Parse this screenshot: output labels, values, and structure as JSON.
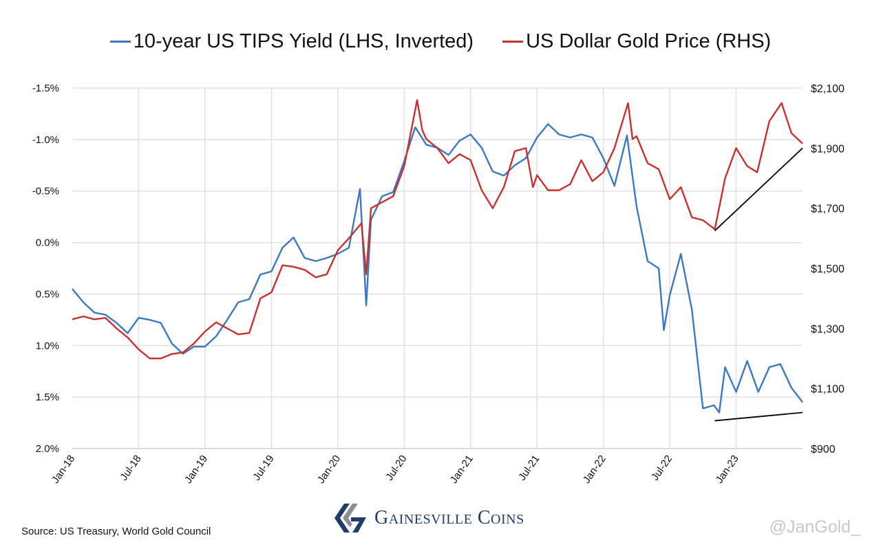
{
  "chart_data": {
    "type": "line",
    "title": "",
    "legend_position": "top",
    "grid": true,
    "x_tick_labels": [
      "Jan-18",
      "Jul-18",
      "Jan-19",
      "Jul-19",
      "Jan-20",
      "Jul-20",
      "Jan-21",
      "Jul-21",
      "Jan-22",
      "Jul-22",
      "Jan-23"
    ],
    "x_range": [
      "2018-01-01",
      "2023-07-01"
    ],
    "y_left": {
      "label": "",
      "inverted": true,
      "range": [
        -1.5,
        2.0
      ],
      "ticks": [
        "-1.5%",
        "-1.0%",
        "-0.5%",
        "0.0%",
        "0.5%",
        "1.0%",
        "1.5%",
        "2.0%"
      ],
      "tick_values": [
        -1.5,
        -1.0,
        -0.5,
        0.0,
        0.5,
        1.0,
        1.5,
        2.0
      ]
    },
    "y_right": {
      "label": "",
      "range": [
        900,
        2100
      ],
      "ticks": [
        "$2,100",
        "$1,900",
        "$1,700",
        "$1,500",
        "$1,300",
        "$1,100",
        "$900"
      ],
      "tick_values": [
        2100,
        1900,
        1700,
        1500,
        1300,
        1100,
        900
      ]
    },
    "series": [
      {
        "name": "10-year US TIPS Yield (LHS, Inverted)",
        "axis": "left",
        "color": "#3a78c3",
        "x": [
          "2018-01-01",
          "2018-02-01",
          "2018-03-01",
          "2018-04-01",
          "2018-05-01",
          "2018-06-01",
          "2018-07-01",
          "2018-08-01",
          "2018-09-01",
          "2018-10-01",
          "2018-11-01",
          "2018-12-01",
          "2019-01-01",
          "2019-02-01",
          "2019-03-01",
          "2019-04-01",
          "2019-05-01",
          "2019-06-01",
          "2019-07-01",
          "2019-08-01",
          "2019-09-01",
          "2019-10-01",
          "2019-11-01",
          "2019-12-01",
          "2020-01-01",
          "2020-02-01",
          "2020-03-01",
          "2020-03-18",
          "2020-04-01",
          "2020-05-01",
          "2020-06-01",
          "2020-07-01",
          "2020-08-01",
          "2020-09-01",
          "2020-10-01",
          "2020-11-01",
          "2020-12-01",
          "2021-01-01",
          "2021-02-01",
          "2021-03-01",
          "2021-04-01",
          "2021-05-01",
          "2021-06-01",
          "2021-07-01",
          "2021-08-01",
          "2021-09-01",
          "2021-10-01",
          "2021-11-01",
          "2021-12-01",
          "2022-01-01",
          "2022-02-01",
          "2022-03-05",
          "2022-04-01",
          "2022-05-01",
          "2022-06-01",
          "2022-06-15",
          "2022-07-01",
          "2022-08-01",
          "2022-09-01",
          "2022-10-01",
          "2022-11-01",
          "2022-11-15",
          "2022-12-01",
          "2023-01-01",
          "2023-02-01",
          "2023-03-01",
          "2023-04-01",
          "2023-05-01",
          "2023-06-01",
          "2023-07-01"
        ],
        "y": [
          0.45,
          0.58,
          0.68,
          0.7,
          0.78,
          0.88,
          0.73,
          0.75,
          0.78,
          0.98,
          1.08,
          1.01,
          1.01,
          0.91,
          0.75,
          0.58,
          0.55,
          0.31,
          0.28,
          0.05,
          -0.05,
          0.15,
          0.18,
          0.15,
          0.11,
          0.05,
          -0.52,
          0.61,
          -0.22,
          -0.45,
          -0.49,
          -0.79,
          -1.12,
          -0.95,
          -0.92,
          -0.85,
          -0.99,
          -1.05,
          -0.92,
          -0.69,
          -0.65,
          -0.75,
          -0.82,
          -1.02,
          -1.15,
          -1.05,
          -1.02,
          -1.05,
          -1.02,
          -0.82,
          -0.55,
          -1.04,
          -0.35,
          0.18,
          0.25,
          0.85,
          0.51,
          0.11,
          0.65,
          1.61,
          1.58,
          1.65,
          1.21,
          1.45,
          1.15,
          1.45,
          1.21,
          1.18,
          1.41,
          1.55
        ]
      },
      {
        "name": "US Dollar Gold Price (RHS)",
        "axis": "right",
        "color": "#c8302c",
        "x": [
          "2018-01-01",
          "2018-02-01",
          "2018-03-01",
          "2018-04-01",
          "2018-05-01",
          "2018-06-01",
          "2018-07-01",
          "2018-08-01",
          "2018-09-01",
          "2018-10-01",
          "2018-11-01",
          "2018-12-01",
          "2019-01-01",
          "2019-02-01",
          "2019-03-01",
          "2019-04-01",
          "2019-05-01",
          "2019-06-01",
          "2019-07-01",
          "2019-08-01",
          "2019-09-01",
          "2019-10-01",
          "2019-11-01",
          "2019-12-01",
          "2020-01-01",
          "2020-02-01",
          "2020-03-05",
          "2020-03-18",
          "2020-04-01",
          "2020-05-01",
          "2020-06-01",
          "2020-07-01",
          "2020-08-06",
          "2020-08-20",
          "2020-09-01",
          "2020-10-01",
          "2020-11-01",
          "2020-12-01",
          "2021-01-01",
          "2021-02-01",
          "2021-03-01",
          "2021-04-01",
          "2021-05-01",
          "2021-06-01",
          "2021-06-20",
          "2021-07-01",
          "2021-08-01",
          "2021-09-01",
          "2021-10-01",
          "2021-11-01",
          "2021-12-01",
          "2022-01-01",
          "2022-02-01",
          "2022-03-08",
          "2022-03-20",
          "2022-04-01",
          "2022-05-01",
          "2022-06-01",
          "2022-07-01",
          "2022-08-01",
          "2022-09-01",
          "2022-10-01",
          "2022-11-03",
          "2022-12-01",
          "2023-01-01",
          "2023-02-01",
          "2023-02-28",
          "2023-04-01",
          "2023-05-04",
          "2023-06-01",
          "2023-07-01"
        ],
        "y": [
          1330,
          1340,
          1330,
          1335,
          1300,
          1270,
          1230,
          1200,
          1200,
          1215,
          1220,
          1250,
          1290,
          1320,
          1300,
          1280,
          1285,
          1400,
          1420,
          1510,
          1505,
          1495,
          1470,
          1480,
          1560,
          1600,
          1650,
          1480,
          1700,
          1720,
          1740,
          1840,
          2060,
          1960,
          1930,
          1900,
          1850,
          1880,
          1860,
          1760,
          1700,
          1770,
          1890,
          1900,
          1770,
          1810,
          1760,
          1760,
          1780,
          1860,
          1790,
          1820,
          1900,
          2050,
          1930,
          1940,
          1850,
          1830,
          1730,
          1770,
          1670,
          1660,
          1630,
          1800,
          1900,
          1840,
          1820,
          1990,
          2050,
          1950,
          1915
        ]
      }
    ],
    "annotations": [
      {
        "type": "trendline",
        "axis": "right",
        "x": [
          "2022-11-03",
          "2023-07-01"
        ],
        "y": [
          1625,
          1900
        ],
        "color": "#000000"
      },
      {
        "type": "trendline",
        "axis": "left",
        "x": [
          "2022-11-03",
          "2023-07-01"
        ],
        "y": [
          1.73,
          1.65
        ],
        "color": "#000000"
      }
    ]
  },
  "legend": {
    "items": [
      {
        "label": "10-year US TIPS Yield (LHS, Inverted)",
        "color": "#3a78c3"
      },
      {
        "label": "US Dollar Gold Price (RHS)",
        "color": "#c8302c"
      }
    ]
  },
  "footer": {
    "source": "Source: US Treasury, World Gold Council",
    "logo_text": "Gainesville Coins",
    "watermark": "@JanGold_"
  }
}
